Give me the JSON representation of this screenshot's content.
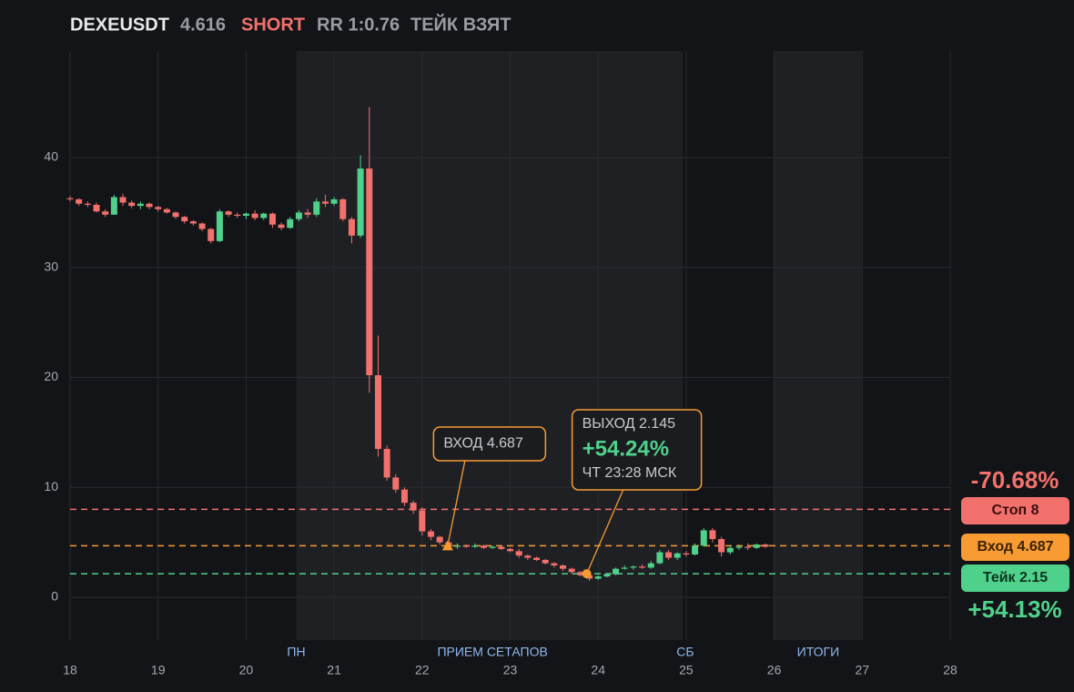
{
  "header": {
    "symbol": "DEXEUSDT",
    "price": "4.616",
    "side": "SHORT",
    "rr": "RR 1:0.76",
    "status": "ТЕЙК ВЗЯТ"
  },
  "chart_data": {
    "type": "candlestick",
    "xlim": [
      18,
      28
    ],
    "xticks": [
      18,
      19,
      20,
      21,
      22,
      23,
      24,
      25,
      26,
      27,
      28
    ],
    "ylim": [
      -3.89,
      49.69
    ],
    "yticks": [
      0,
      10,
      20,
      30,
      40
    ],
    "grid": true,
    "up_color": "#4fd18b",
    "down_color": "#f2716d",
    "bands": [
      {
        "start": 20.57,
        "end": 24.96
      },
      {
        "start": 25.99,
        "end": 26.99
      }
    ],
    "sessions": [
      {
        "label": "ПН",
        "x": 20.57
      },
      {
        "label": "ПРИЕМ СЕТАПОВ",
        "x": 22.8
      },
      {
        "label": "СБ",
        "x": 24.99
      },
      {
        "label": "ИТОГИ",
        "x": 26.5
      }
    ],
    "x": [
      18.0,
      18.1,
      18.2,
      18.3,
      18.4,
      18.5,
      18.6,
      18.7,
      18.8,
      18.9,
      19.0,
      19.1,
      19.2,
      19.3,
      19.4,
      19.5,
      19.6,
      19.7,
      19.8,
      19.9,
      20.0,
      20.1,
      20.2,
      20.3,
      20.4,
      20.5,
      20.6,
      20.7,
      20.8,
      20.9,
      21.0,
      21.1,
      21.2,
      21.3,
      21.4,
      21.5,
      21.6,
      21.7,
      21.8,
      21.9,
      22.0,
      22.1,
      22.2,
      22.3,
      22.4,
      22.5,
      22.6,
      22.7,
      22.8,
      22.9,
      23.0,
      23.1,
      23.2,
      23.3,
      23.4,
      23.5,
      23.6,
      23.7,
      23.8,
      23.9,
      24.0,
      24.1,
      24.2,
      24.3,
      24.4,
      24.5,
      24.6,
      24.7,
      24.8,
      24.9,
      25.0,
      25.1,
      25.2,
      25.3,
      25.4,
      25.5,
      25.6,
      25.7,
      25.8,
      25.9
    ],
    "open": [
      36.3,
      36.2,
      35.8,
      35.7,
      35.1,
      34.8,
      36.4,
      35.9,
      35.6,
      35.8,
      35.5,
      35.3,
      35.0,
      34.6,
      34.2,
      34.0,
      33.5,
      32.4,
      35.1,
      34.8,
      34.7,
      34.9,
      34.5,
      34.9,
      33.9,
      33.6,
      34.4,
      35.0,
      34.8,
      36.0,
      35.8,
      36.2,
      34.4,
      32.9,
      39.0,
      20.2,
      13.5,
      10.9,
      9.8,
      8.6,
      7.9,
      6.0,
      5.5,
      5.0,
      4.6,
      4.7,
      4.6,
      4.7,
      4.5,
      4.6,
      4.4,
      4.2,
      3.8,
      3.6,
      3.4,
      3.1,
      2.9,
      2.6,
      2.3,
      2.0,
      1.7,
      1.9,
      2.1,
      2.6,
      2.7,
      2.8,
      2.7,
      3.1,
      4.1,
      3.6,
      4.0,
      3.9,
      4.7,
      6.1,
      5.3,
      4.1,
      4.5,
      4.6,
      4.5,
      4.8
    ],
    "high": [
      36.5,
      36.3,
      36.0,
      35.9,
      35.3,
      36.6,
      36.7,
      36.1,
      36.0,
      35.9,
      35.6,
      35.4,
      35.1,
      34.7,
      34.3,
      34.1,
      33.6,
      35.3,
      35.2,
      35.0,
      35.0,
      35.2,
      35.0,
      35.0,
      34.1,
      34.6,
      35.2,
      35.3,
      36.3,
      36.6,
      36.4,
      36.3,
      34.6,
      40.2,
      44.6,
      23.8,
      13.8,
      11.2,
      10.0,
      8.8,
      8.2,
      6.2,
      5.6,
      5.1,
      4.9,
      4.8,
      4.9,
      4.8,
      4.7,
      4.7,
      4.5,
      4.4,
      3.9,
      3.7,
      3.5,
      3.2,
      3.0,
      2.7,
      2.4,
      2.2,
      2.0,
      2.2,
      2.7,
      2.9,
      2.9,
      3.0,
      3.3,
      4.3,
      4.3,
      4.1,
      4.2,
      4.9,
      6.3,
      6.3,
      5.5,
      4.7,
      4.8,
      4.9,
      4.9,
      4.9
    ],
    "low": [
      36.0,
      35.6,
      35.5,
      35.0,
      34.6,
      34.8,
      35.6,
      35.4,
      35.3,
      35.3,
      35.1,
      34.9,
      34.4,
      34.0,
      33.8,
      33.3,
      32.2,
      32.3,
      34.6,
      34.5,
      34.4,
      34.3,
      34.3,
      33.6,
      33.4,
      33.5,
      34.2,
      34.5,
      34.6,
      35.5,
      35.6,
      34.2,
      32.2,
      32.7,
      18.6,
      12.8,
      10.6,
      9.5,
      8.3,
      7.6,
      5.6,
      5.2,
      4.8,
      4.5,
      4.4,
      4.5,
      4.5,
      4.4,
      4.4,
      4.3,
      4.1,
      3.6,
      3.4,
      3.3,
      3.0,
      2.7,
      2.4,
      2.1,
      1.9,
      1.5,
      1.6,
      1.8,
      2.0,
      2.5,
      2.5,
      2.6,
      2.6,
      3.0,
      3.4,
      3.4,
      3.7,
      3.8,
      4.6,
      5.0,
      3.7,
      3.9,
      4.3,
      4.3,
      4.4,
      4.5
    ],
    "close": [
      36.2,
      35.8,
      35.7,
      35.1,
      34.8,
      36.4,
      35.9,
      35.6,
      35.8,
      35.5,
      35.3,
      35.0,
      34.6,
      34.2,
      34.0,
      33.5,
      32.4,
      35.1,
      34.8,
      34.7,
      34.9,
      34.5,
      34.9,
      33.9,
      33.6,
      34.4,
      35.0,
      34.8,
      36.0,
      35.8,
      36.2,
      34.4,
      32.9,
      39.0,
      20.2,
      13.5,
      10.9,
      9.8,
      8.6,
      7.9,
      6.0,
      5.5,
      5.0,
      4.6,
      4.7,
      4.6,
      4.7,
      4.5,
      4.6,
      4.4,
      4.2,
      3.8,
      3.6,
      3.4,
      3.1,
      2.9,
      2.6,
      2.3,
      2.0,
      1.7,
      1.9,
      2.1,
      2.6,
      2.7,
      2.8,
      2.7,
      3.1,
      4.1,
      3.6,
      4.0,
      3.9,
      4.7,
      6.1,
      5.3,
      4.1,
      4.5,
      4.6,
      4.5,
      4.8,
      4.6
    ],
    "levels": [
      {
        "value": 8,
        "label": "Стоп 8",
        "color": "#f2716d",
        "pct_label": "-70.68%"
      },
      {
        "value": 4.687,
        "label": "Вход 4.687",
        "color": "#f79b32"
      },
      {
        "value": 2.15,
        "label": "Тейк 2.15",
        "color": "#4fd18b",
        "pct_label": "+54.13%"
      }
    ],
    "annotations": [
      {
        "x": 22.29,
        "y": 4.687,
        "marker": "triangle",
        "lines": [
          "ВХОД 4.687"
        ]
      },
      {
        "x": 23.87,
        "y": 2.145,
        "marker": "circle",
        "lines": [
          "ВЫХОД 2.145",
          "+54.24%",
          "ЧТ 23:28 МСК"
        ]
      }
    ]
  }
}
